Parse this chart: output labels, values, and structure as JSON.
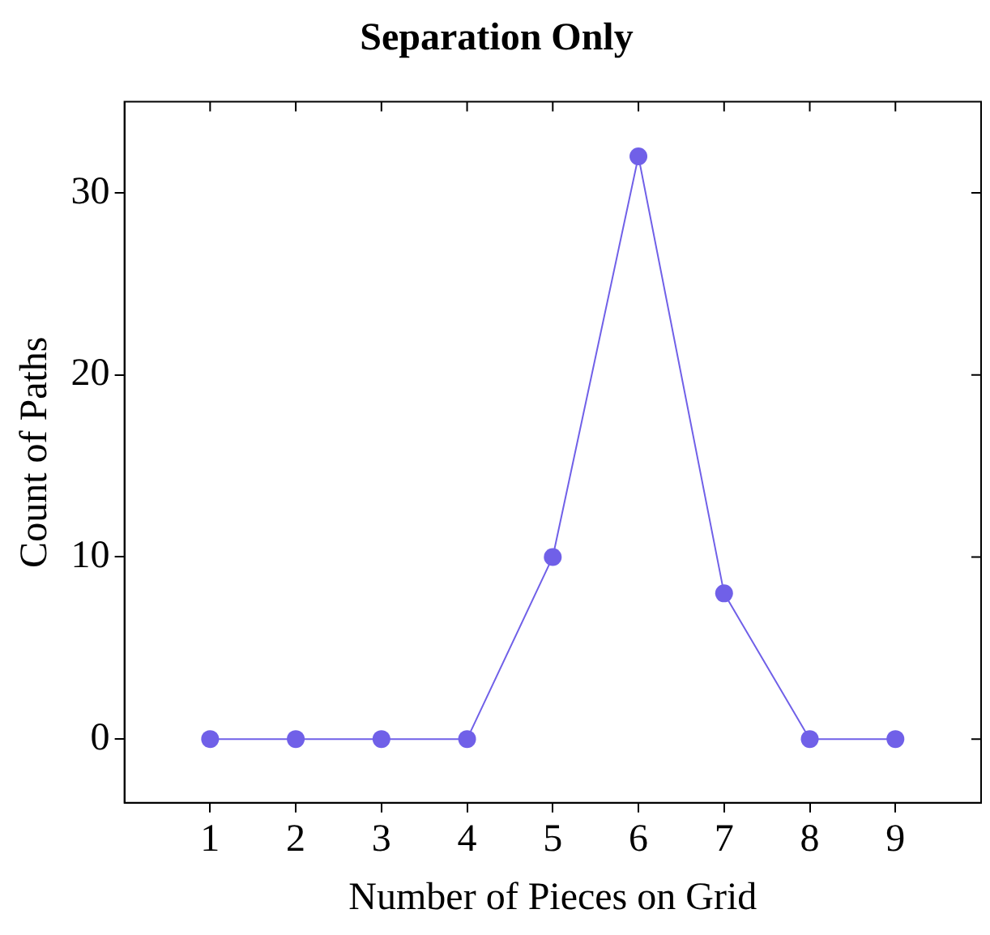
{
  "chart_data": {
    "type": "line",
    "title": "Separation Only",
    "xlabel": "Number of Pieces on Grid",
    "ylabel": "Count of Paths",
    "x": [
      1,
      2,
      3,
      4,
      5,
      6,
      7,
      8,
      9
    ],
    "series": [
      {
        "color": "#7060e8",
        "values": [
          0,
          0,
          0,
          0,
          10,
          32,
          8,
          0,
          0
        ]
      }
    ],
    "xlim": [
      0,
      10
    ],
    "xticks": [
      1,
      2,
      3,
      4,
      5,
      6,
      7,
      8,
      9
    ],
    "ylim": [
      -3.5,
      35
    ],
    "yticks": [
      0,
      10,
      20,
      30
    ],
    "grid": false,
    "legend": false,
    "marker": "circle",
    "line_style": "solid"
  }
}
